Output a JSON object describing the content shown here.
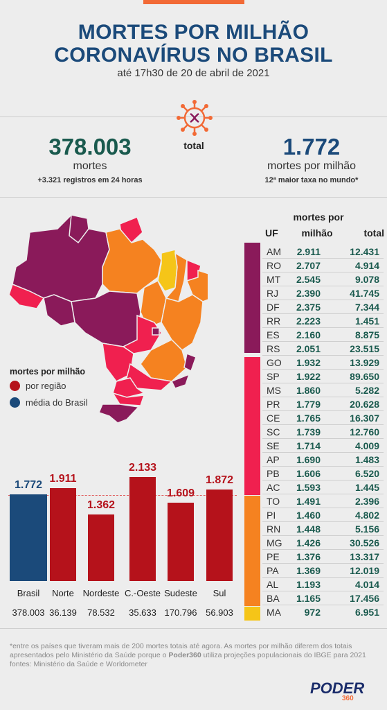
{
  "header": {
    "title_line1": "MORTES POR MILHÃO",
    "title_line2": "CORONAVÍRUS NO BRASIL",
    "subtitle": "até 17h30 de 20 de abril de 2021"
  },
  "summary": {
    "total_label": "total",
    "deaths_value": "378.003",
    "deaths_label": "mortes",
    "deaths_note": "+3.321 registros em 24 horas",
    "per_million_value": "1.772",
    "per_million_label": "mortes por milhão",
    "per_million_note": "12ª maior taxa no mundo*"
  },
  "colors": {
    "title": "#1b4a7a",
    "deaths_green": "#1a5a4e",
    "brasil_blue": "#1b4a7a",
    "region_red": "#b5121b",
    "tier_purple": "#8a1a5a",
    "tier_pink": "#f0204f",
    "tier_orange": "#f58220",
    "tier_yellow": "#f5c518"
  },
  "legend": {
    "title": "mortes por milhão",
    "region": "por região",
    "brasil_avg": "média do Brasil"
  },
  "table": {
    "header_uf": "UF",
    "header_pm_line1": "mortes por",
    "header_pm_line2": "milhão",
    "header_total": "total",
    "rows": [
      {
        "uf": "AM",
        "pm": "2.911",
        "total": "12.431"
      },
      {
        "uf": "RO",
        "pm": "2.707",
        "total": "4.914"
      },
      {
        "uf": "MT",
        "pm": "2.545",
        "total": "9.078"
      },
      {
        "uf": "RJ",
        "pm": "2.390",
        "total": "41.745"
      },
      {
        "uf": "DF",
        "pm": "2.375",
        "total": "7.344"
      },
      {
        "uf": "RR",
        "pm": "2.223",
        "total": "1.451"
      },
      {
        "uf": "ES",
        "pm": "2.160",
        "total": "8.875"
      },
      {
        "uf": "RS",
        "pm": "2.051",
        "total": "23.515"
      },
      {
        "uf": "GO",
        "pm": "1.932",
        "total": "13.929"
      },
      {
        "uf": "SP",
        "pm": "1.922",
        "total": "89.650"
      },
      {
        "uf": "MS",
        "pm": "1.860",
        "total": "5.282"
      },
      {
        "uf": "PR",
        "pm": "1.779",
        "total": "20.628"
      },
      {
        "uf": "CE",
        "pm": "1.765",
        "total": "16.307"
      },
      {
        "uf": "SC",
        "pm": "1.739",
        "total": "12.760"
      },
      {
        "uf": "SE",
        "pm": "1.714",
        "total": "4.009"
      },
      {
        "uf": "AP",
        "pm": "1.690",
        "total": "1.483"
      },
      {
        "uf": "PB",
        "pm": "1.606",
        "total": "6.520"
      },
      {
        "uf": "AC",
        "pm": "1.593",
        "total": "1.445"
      },
      {
        "uf": "TO",
        "pm": "1.491",
        "total": "2.396"
      },
      {
        "uf": "PI",
        "pm": "1.460",
        "total": "4.802"
      },
      {
        "uf": "RN",
        "pm": "1.448",
        "total": "5.156"
      },
      {
        "uf": "MG",
        "pm": "1.426",
        "total": "30.526"
      },
      {
        "uf": "PE",
        "pm": "1.376",
        "total": "13.317"
      },
      {
        "uf": "PA",
        "pm": "1.369",
        "total": "12.019"
      },
      {
        "uf": "AL",
        "pm": "1.193",
        "total": "4.014"
      },
      {
        "uf": "BA",
        "pm": "1.165",
        "total": "17.456"
      },
      {
        "uf": "MA",
        "pm": "972",
        "total": "6.951"
      }
    ]
  },
  "chart_data": {
    "type": "bar",
    "categories": [
      "Brasil",
      "Norte",
      "Nordeste",
      "C.-Oeste",
      "Sudeste",
      "Sul"
    ],
    "values": [
      1772,
      1911,
      1362,
      2133,
      1609,
      1872
    ],
    "value_labels": [
      "1.772",
      "1.911",
      "1.362",
      "2.133",
      "1.609",
      "1.872"
    ],
    "totals": [
      "378.003",
      "36.139",
      "78.532",
      "35.633",
      "170.796",
      "56.903"
    ],
    "bar_colors": [
      "#1b4a7a",
      "#b5121b",
      "#b5121b",
      "#b5121b",
      "#b5121b",
      "#b5121b"
    ],
    "reference_line": 1772,
    "ylim": [
      0,
      2133
    ]
  },
  "footer": {
    "note_part1": "*entre os países que tiveram mais de 200 mortes totais até agora. As mortes por milhão diferem dos totais apresentados pelo Ministério da Saúde porque o ",
    "note_brand": "Poder360",
    "note_part2": " utiliza projeções populacionais do IBGE para 2021",
    "sources": "fontes: Ministério da Saúde e Worldometer",
    "logo_text": "PODER",
    "logo_num": "360"
  }
}
